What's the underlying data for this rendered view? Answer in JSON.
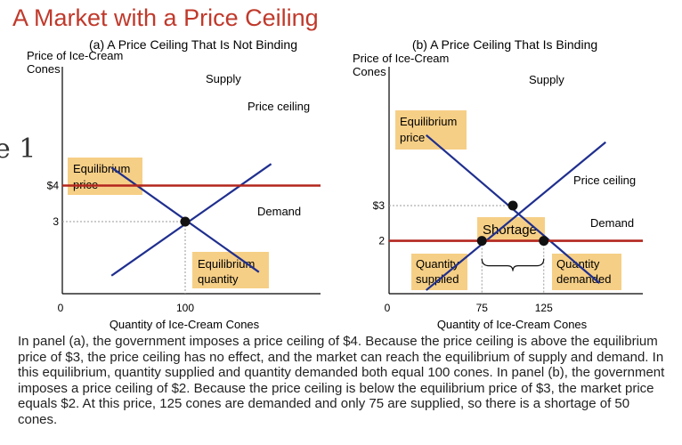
{
  "slide": {
    "title": "A Market with a Price Ceiling",
    "number_fragment": "e 1",
    "caption": "In panel (a), the government imposes a price ceiling of $4. Because the price ceiling is above the equilibrium price of $3, the price ceiling has no effect, and the market can reach the equilibrium of supply and demand. In this equilibrium, quantity supplied and quantity demanded both equal 100 cones. In panel (b), the government imposes a price ceiling of $2. Because the price ceiling is below the equilibrium price of $3, the market price equals $2. At this price, 125 cones are demanded and only 75 are supplied, so there is a shortage of 50 cones."
  },
  "colors": {
    "title": "#c0392b",
    "curves": "#1f2f8f",
    "ceiling": "#b3261e",
    "label_box": "#f6cf86",
    "guide": "#999999"
  },
  "chart_data": [
    {
      "type": "line",
      "title": "(a) A Price Ceiling That Is Not Binding",
      "ylabel": "Price of Ice-Cream Cones",
      "xlabel": "Quantity of Ice-Cream Cones",
      "x_ticks": [
        "0",
        "100"
      ],
      "y_ticks": [
        "3",
        "$4"
      ],
      "series": [
        {
          "name": "Supply",
          "label": "Supply",
          "points": [
            [
              40,
              1.5
            ],
            [
              170,
              4.6
            ]
          ]
        },
        {
          "name": "Demand",
          "label": "Demand",
          "points": [
            [
              40,
              4.5
            ],
            [
              160,
              1.6
            ]
          ]
        }
      ],
      "price_ceiling": {
        "label": "Price ceiling",
        "price": 4
      },
      "equilibrium": {
        "quantity": 100,
        "price": 3
      },
      "annotations": [
        {
          "id": "eq-price",
          "lines": [
            "Equilibrium",
            "price"
          ]
        },
        {
          "id": "eq-quantity",
          "lines": [
            "Equilibrium",
            "quantity"
          ]
        }
      ]
    },
    {
      "type": "line",
      "title": "(b) A Price Ceiling That Is Binding",
      "ylabel": "Price of Ice-Cream Cones",
      "xlabel": "Quantity of Ice-Cream Cones",
      "x_ticks": [
        "0",
        "75",
        "125"
      ],
      "y_ticks": [
        "2",
        "$3"
      ],
      "series": [
        {
          "name": "Supply",
          "label": "Supply",
          "points": [
            [
              30,
              0.6
            ],
            [
              175,
              4.8
            ]
          ]
        },
        {
          "name": "Demand",
          "label": "Demand",
          "points": [
            [
              30,
              5.0
            ],
            [
              170,
              0.8
            ]
          ]
        }
      ],
      "price_ceiling": {
        "label": "Price ceiling",
        "price": 2
      },
      "equilibrium": {
        "quantity": 100,
        "price": 3
      },
      "quantity_supplied": 75,
      "quantity_demanded": 125,
      "shortage_label": "Shortage",
      "annotations": [
        {
          "id": "eq-price",
          "lines": [
            "Equilibrium",
            "price"
          ]
        },
        {
          "id": "qty-supplied",
          "lines": [
            "Quantity",
            "supplied"
          ]
        },
        {
          "id": "qty-demanded",
          "lines": [
            "Quantity",
            "demanded"
          ]
        }
      ]
    }
  ]
}
